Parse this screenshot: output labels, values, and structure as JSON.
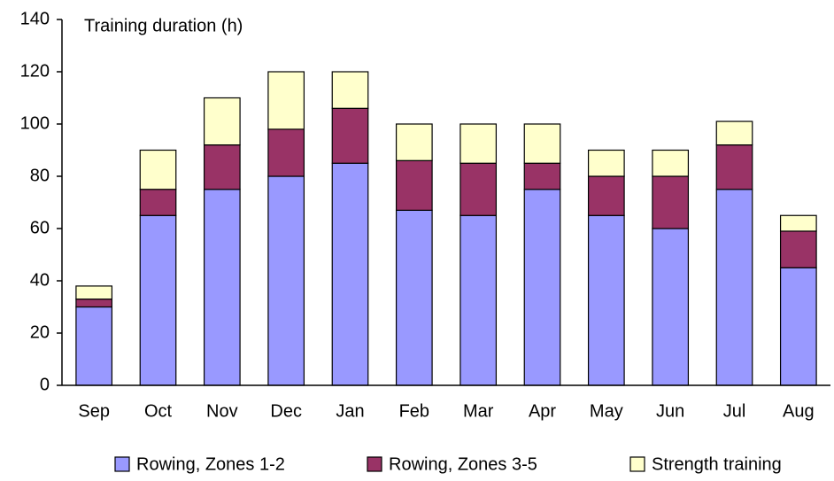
{
  "chart_data": {
    "type": "stacked_bar",
    "title": "Training duration (h)",
    "categories": [
      "Sep",
      "Oct",
      "Nov",
      "Dec",
      "Jan",
      "Feb",
      "Mar",
      "Apr",
      "May",
      "Jun",
      "Jul",
      "Aug"
    ],
    "series": [
      {
        "name": "Rowing, Zones 1-2",
        "color": "#9999ff",
        "values": [
          30,
          65,
          75,
          80,
          85,
          67,
          65,
          75,
          65,
          60,
          75,
          45
        ]
      },
      {
        "name": "Rowing, Zones 3-5",
        "color": "#993366",
        "values": [
          3,
          10,
          17,
          18,
          21,
          19,
          20,
          10,
          15,
          20,
          17,
          14
        ]
      },
      {
        "name": "Strength training",
        "color": "#ffffcc",
        "values": [
          5,
          15,
          18,
          22,
          14,
          14,
          15,
          15,
          10,
          10,
          9,
          6
        ]
      }
    ],
    "ylim": [
      0,
      140
    ],
    "yticks": [
      0,
      20,
      40,
      60,
      80,
      100,
      120,
      140
    ],
    "grid": false,
    "legend": "bottom"
  }
}
